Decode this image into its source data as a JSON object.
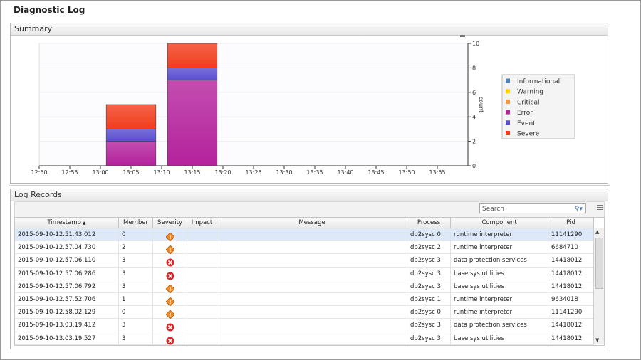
{
  "header": {
    "title": "Diagnostic Log"
  },
  "summary": {
    "title": "Summary",
    "chart": {
      "type": "bar",
      "stacked": true,
      "categories": [
        "12:50",
        "12:55",
        "13:00",
        "13:05",
        "13:10",
        "13:15",
        "13:20",
        "13:25",
        "13:30",
        "13:35",
        "13:40",
        "13:45",
        "13:50",
        "13:55"
      ],
      "series": [
        {
          "name": "Informational",
          "color": "#4f81bd",
          "values": [
            null,
            null,
            null,
            0,
            null,
            0,
            null,
            null,
            null,
            null,
            null,
            null,
            null,
            null
          ]
        },
        {
          "name": "Warning",
          "color": "#ffd200",
          "values": [
            null,
            null,
            null,
            0,
            null,
            0,
            null,
            null,
            null,
            null,
            null,
            null,
            null,
            null
          ]
        },
        {
          "name": "Critical",
          "color": "#f79646",
          "values": [
            null,
            null,
            null,
            0,
            null,
            0,
            null,
            null,
            null,
            null,
            null,
            null,
            null,
            null
          ]
        },
        {
          "name": "Error",
          "color": "#b4229c",
          "values": [
            null,
            null,
            null,
            2,
            null,
            7,
            null,
            null,
            null,
            null,
            null,
            null,
            null,
            null
          ]
        },
        {
          "name": "Event",
          "color": "#5a4ed0",
          "values": [
            null,
            null,
            null,
            1,
            null,
            1,
            null,
            null,
            null,
            null,
            null,
            null,
            null,
            null
          ]
        },
        {
          "name": "Severe",
          "color": "#f23d1c",
          "values": [
            null,
            null,
            null,
            2,
            null,
            2,
            null,
            null,
            null,
            null,
            null,
            null,
            null,
            null
          ]
        }
      ],
      "y_label": "count",
      "ylim": [
        0,
        10
      ],
      "yticks": [
        0,
        2,
        4,
        6,
        8,
        10
      ],
      "grid": true,
      "legend": "right"
    }
  },
  "table": {
    "title": "Log Records",
    "search_placeholder": "Search",
    "columns": [
      "Timestamp",
      "Member",
      "Severity",
      "Impact",
      "Message",
      "Process",
      "Component",
      "Pid"
    ],
    "rows": [
      {
        "timestamp": "2015-09-10-12.51.43.012",
        "member": 0,
        "process": "db2sysc 0",
        "component": "runtime interpreter",
        "pid": 11141290
      },
      {
        "timestamp": "2015-09-10-12.57.04.730",
        "member": 2,
        "process": "db2sysc 2",
        "component": "runtime interpreter",
        "pid": 6684710
      },
      {
        "timestamp": "2015-09-10-12.57.06.110",
        "member": 3,
        "process": "db2sysc 3",
        "component": "data protection services",
        "pid": 14418012
      },
      {
        "timestamp": "2015-09-10-12.57.06.286",
        "member": 3,
        "process": "db2sysc 3",
        "component": "base sys utilities",
        "pid": 14418012
      },
      {
        "timestamp": "2015-09-10-12.57.06.792",
        "member": 3,
        "process": "db2sysc 3",
        "component": "base sys utilities",
        "pid": 14418012
      },
      {
        "timestamp": "2015-09-10-12.57.52.706",
        "member": 1,
        "process": "db2sysc 1",
        "component": "runtime interpreter",
        "pid": 9634018
      },
      {
        "timestamp": "2015-09-10-12.58.02.129",
        "member": 0,
        "process": "db2sysc 0",
        "component": "runtime interpreter",
        "pid": 11141290
      },
      {
        "timestamp": "2015-09-10-13.03.19.412",
        "member": 3,
        "process": "db2sysc 3",
        "component": "data protection services",
        "pid": 14418012
      },
      {
        "timestamp": "2015-09-10-13.03.19.527",
        "member": 3,
        "process": "db2sysc 3",
        "component": "base sys utilities",
        "pid": 14418012
      }
    ]
  }
}
